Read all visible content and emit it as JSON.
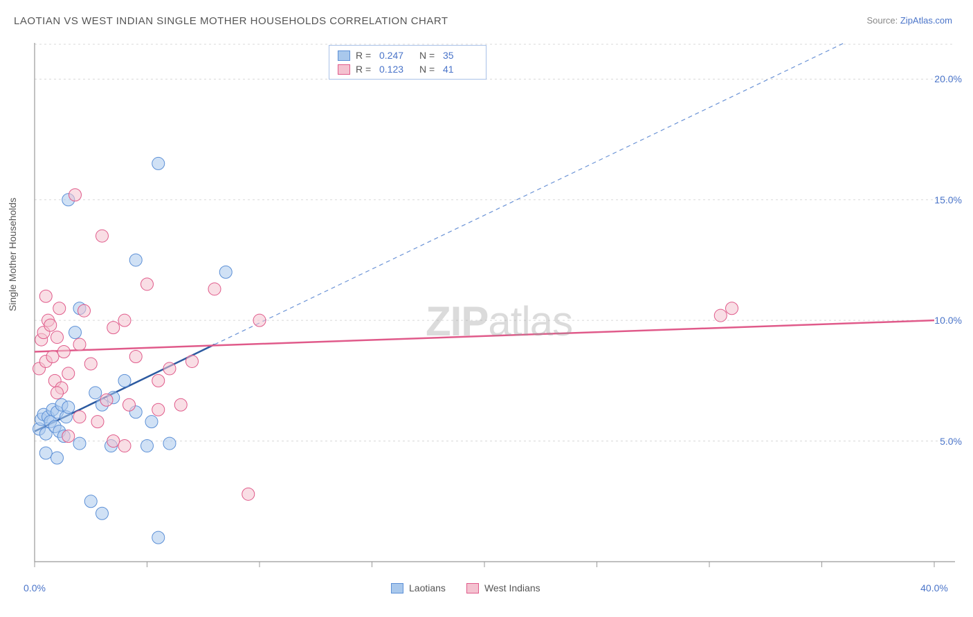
{
  "title": "LAOTIAN VS WEST INDIAN SINGLE MOTHER HOUSEHOLDS CORRELATION CHART",
  "source_label": "Source: ",
  "source_value": "ZipAtlas.com",
  "ylabel": "Single Mother Households",
  "watermark_bold": "ZIP",
  "watermark_light": "atlas",
  "chart": {
    "type": "scatter",
    "xlim": [
      0,
      40
    ],
    "ylim": [
      0,
      21.5
    ],
    "xticks": [
      0,
      5,
      10,
      15,
      20,
      25,
      30,
      35,
      40
    ],
    "xtick_labels": [
      "0.0%",
      "",
      "",
      "",
      "",
      "",
      "",
      "",
      "40.0%"
    ],
    "yticks": [
      5,
      10,
      15,
      20
    ],
    "ytick_labels": [
      "5.0%",
      "10.0%",
      "15.0%",
      "20.0%"
    ],
    "grid_color": "#d8d8d8",
    "axis_color": "#999999",
    "background_color": "#ffffff",
    "marker_radius": 9,
    "marker_opacity": 0.55,
    "series": [
      {
        "name": "Laotians",
        "color_fill": "#a9c8ec",
        "color_stroke": "#5b8fd6",
        "R": "0.247",
        "N": "35",
        "points": [
          [
            0.2,
            5.5
          ],
          [
            0.3,
            5.9
          ],
          [
            0.4,
            6.1
          ],
          [
            0.5,
            5.3
          ],
          [
            0.6,
            6.0
          ],
          [
            0.7,
            5.8
          ],
          [
            0.8,
            6.3
          ],
          [
            0.9,
            5.6
          ],
          [
            1.0,
            6.2
          ],
          [
            1.1,
            5.4
          ],
          [
            1.2,
            6.5
          ],
          [
            1.3,
            5.2
          ],
          [
            1.4,
            6.0
          ],
          [
            1.5,
            6.4
          ],
          [
            0.5,
            4.5
          ],
          [
            1.0,
            4.3
          ],
          [
            2.0,
            4.9
          ],
          [
            2.5,
            2.5
          ],
          [
            3.0,
            2.0
          ],
          [
            3.4,
            4.8
          ],
          [
            4.5,
            6.2
          ],
          [
            5.0,
            4.8
          ],
          [
            5.2,
            5.8
          ],
          [
            5.5,
            1.0
          ],
          [
            2.0,
            10.5
          ],
          [
            1.8,
            9.5
          ],
          [
            3.0,
            6.5
          ],
          [
            2.7,
            7.0
          ],
          [
            3.5,
            6.8
          ],
          [
            4.0,
            7.5
          ],
          [
            4.5,
            12.5
          ],
          [
            5.5,
            16.5
          ],
          [
            1.5,
            15.0
          ],
          [
            8.5,
            12.0
          ],
          [
            6.0,
            4.9
          ]
        ],
        "trend_line": {
          "x1": 0,
          "y1": 5.4,
          "x2": 8,
          "y2": 9.0,
          "color": "#2c5aa0",
          "width": 2.5
        },
        "trend_line_ext": {
          "x1": 8,
          "y1": 9.0,
          "x2": 36,
          "y2": 21.5,
          "color": "#6b93d6",
          "width": 1.2,
          "dash": "6,5"
        }
      },
      {
        "name": "West Indians",
        "color_fill": "#f4c2d0",
        "color_stroke": "#e05a8a",
        "R": "0.123",
        "N": "41",
        "points": [
          [
            0.2,
            8.0
          ],
          [
            0.3,
            9.2
          ],
          [
            0.4,
            9.5
          ],
          [
            0.5,
            8.3
          ],
          [
            0.6,
            10.0
          ],
          [
            0.7,
            9.8
          ],
          [
            0.8,
            8.5
          ],
          [
            0.9,
            7.5
          ],
          [
            1.0,
            9.3
          ],
          [
            1.1,
            10.5
          ],
          [
            1.2,
            7.2
          ],
          [
            1.3,
            8.7
          ],
          [
            1.5,
            7.8
          ],
          [
            2.0,
            9.0
          ],
          [
            2.2,
            10.4
          ],
          [
            2.5,
            8.2
          ],
          [
            3.0,
            13.5
          ],
          [
            3.5,
            9.7
          ],
          [
            4.0,
            10.0
          ],
          [
            4.5,
            8.5
          ],
          [
            5.0,
            11.5
          ],
          [
            5.5,
            7.5
          ],
          [
            6.0,
            8.0
          ],
          [
            6.5,
            6.5
          ],
          [
            7.0,
            8.3
          ],
          [
            8.0,
            11.3
          ],
          [
            10.0,
            10.0
          ],
          [
            30.5,
            10.2
          ],
          [
            31.0,
            10.5
          ],
          [
            1.8,
            15.2
          ],
          [
            0.5,
            11.0
          ],
          [
            1.0,
            7.0
          ],
          [
            3.5,
            5.0
          ],
          [
            4.0,
            4.8
          ],
          [
            5.5,
            6.3
          ],
          [
            2.8,
            5.8
          ],
          [
            3.2,
            6.7
          ],
          [
            9.5,
            2.8
          ],
          [
            4.2,
            6.5
          ],
          [
            2.0,
            6.0
          ],
          [
            1.5,
            5.2
          ]
        ],
        "trend_line": {
          "x1": 0,
          "y1": 8.7,
          "x2": 40,
          "y2": 10.0,
          "color": "#e05a8a",
          "width": 2.5
        }
      }
    ]
  },
  "legend_top": {
    "R_label": "R =",
    "N_label": "N ="
  },
  "legend_bottom": [
    {
      "label": "Laotians",
      "fill": "#a9c8ec",
      "stroke": "#5b8fd6"
    },
    {
      "label": "West Indians",
      "fill": "#f4c2d0",
      "stroke": "#e05a8a"
    }
  ]
}
